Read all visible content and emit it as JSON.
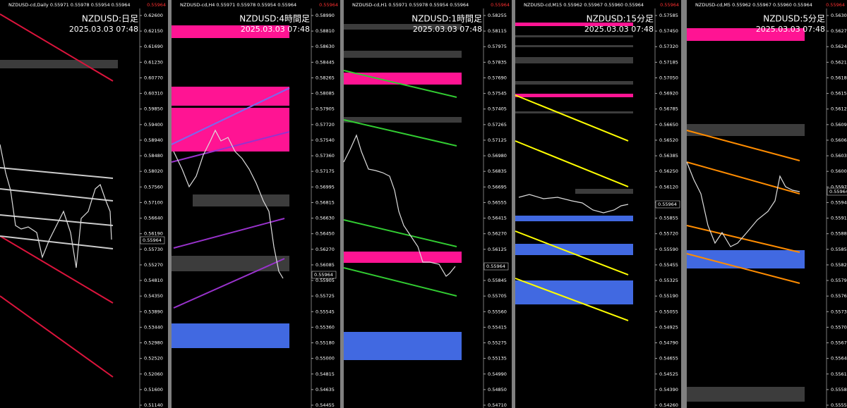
{
  "panels": [
    {
      "header": "NZDUSD-cd,Daily 0.55971 0.55978 0.55954 0.55964",
      "bid": "0.55964",
      "title": "NZDUSD:日足",
      "datetime": "2025.03.03 07:48",
      "current_price": "0.55964",
      "price_labels": [
        "0.62600",
        "0.62150",
        "0.61690",
        "0.61230",
        "0.60770",
        "0.60310",
        "0.59850",
        "0.59400",
        "0.58940",
        "0.58480",
        "0.58020",
        "0.57560",
        "0.57100",
        "0.56640",
        "0.56190",
        "0.55730",
        "0.55270",
        "0.54810",
        "0.54350",
        "0.53890",
        "0.53440",
        "0.52980",
        "0.52520",
        "0.52060",
        "0.51600",
        "0.51140"
      ]
    },
    {
      "header": "NZDUSD-cd,H4 0.55971 0.55978 0.55954 0.55964",
      "bid": "0.55964",
      "title": "NZDUSD:4時間足",
      "datetime": "2025.03.03 07:48",
      "current_price": "0.55964",
      "price_labels": [
        "0.58990",
        "0.58810",
        "0.58630",
        "0.58445",
        "0.58265",
        "0.58085",
        "0.57905",
        "0.57720",
        "0.57540",
        "0.57360",
        "0.57175",
        "0.56995",
        "0.56815",
        "0.56630",
        "0.56450",
        "0.56270",
        "0.56085",
        "0.55905",
        "0.55725",
        "0.55545",
        "0.55360",
        "0.55180",
        "0.55000",
        "0.54815",
        "0.54635",
        "0.54455"
      ]
    },
    {
      "header": "NZDUSD-cd,H1 0.55971 0.55978 0.55954 0.55964",
      "bid": "0.55964",
      "title": "NZDUSD:1時間足",
      "datetime": "2025.03.03 07:48",
      "current_price": "0.55964",
      "price_labels": [
        "0.58255",
        "0.58115",
        "0.57975",
        "0.57835",
        "0.57690",
        "0.57545",
        "0.57405",
        "0.57265",
        "0.57125",
        "0.56980",
        "0.56835",
        "0.56695",
        "0.56555",
        "0.56415",
        "0.56270",
        "0.56125",
        "0.55985",
        "0.55845",
        "0.55705",
        "0.55560",
        "0.55415",
        "0.55275",
        "0.55135",
        "0.54990",
        "0.54850",
        "0.54710"
      ]
    },
    {
      "header": "NZDUSD-cd,M15 0.55962 0.55967 0.55960 0.55964",
      "bid": "0.55964",
      "title": "NZDUSD:15分足",
      "datetime": "2025.03.03 07:48",
      "current_price": "0.55964",
      "price_labels": [
        "0.57585",
        "0.57450",
        "0.57320",
        "0.57185",
        "0.57050",
        "0.56920",
        "0.56785",
        "0.56650",
        "0.56520",
        "0.56385",
        "0.56250",
        "0.56120",
        "0.55985",
        "0.55855",
        "0.55720",
        "0.55590",
        "0.55455",
        "0.55325",
        "0.55190",
        "0.55055",
        "0.54925",
        "0.54790",
        "0.54655",
        "0.54525",
        "0.54390",
        "0.54260"
      ]
    },
    {
      "header": "NZDUSD-cd,M5 0.55962 0.55967 0.55960 0.55964",
      "bid": "0.55964",
      "title": "NZDUSD:5分足",
      "datetime": "2025.03.03 07:48",
      "current_price": "0.55964",
      "price_labels": [
        "0.56305",
        "0.56275",
        "0.56245",
        "0.56215",
        "0.56185",
        "0.56155",
        "0.56125",
        "0.56095",
        "0.56065",
        "0.56035",
        "0.56005",
        "0.55975",
        "0.55945",
        "0.55915",
        "0.55885",
        "0.55855",
        "0.55825",
        "0.55795",
        "0.55765",
        "0.55735",
        "0.55705",
        "0.55675",
        "0.55645",
        "0.55615",
        "0.55585",
        "0.55555"
      ]
    }
  ]
}
